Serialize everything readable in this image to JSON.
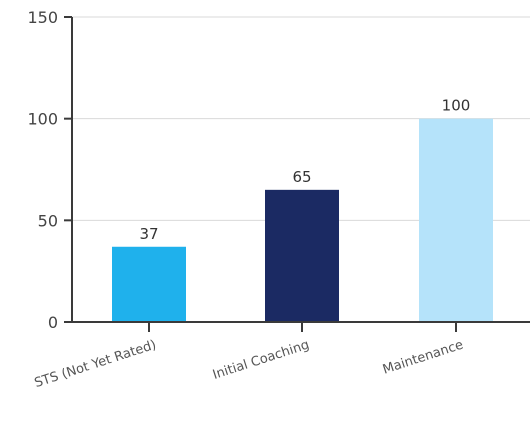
{
  "chart_data": {
    "type": "bar",
    "title": "",
    "xlabel": "",
    "ylabel": "",
    "categories": [
      "STS (Not Yet Rated)",
      "Initial Coaching",
      "Maintenance"
    ],
    "values": [
      37,
      65,
      100
    ],
    "data_labels": [
      "37",
      "65",
      "100"
    ],
    "colors": [
      "#1fb1ec",
      "#1b2a63",
      "#b5e3fa"
    ],
    "ylim": [
      0,
      150
    ],
    "yticks": [
      0,
      50,
      100,
      150
    ],
    "ytick_labels": [
      "0",
      "50",
      "100",
      "150"
    ],
    "grid": true,
    "legend": "none"
  }
}
